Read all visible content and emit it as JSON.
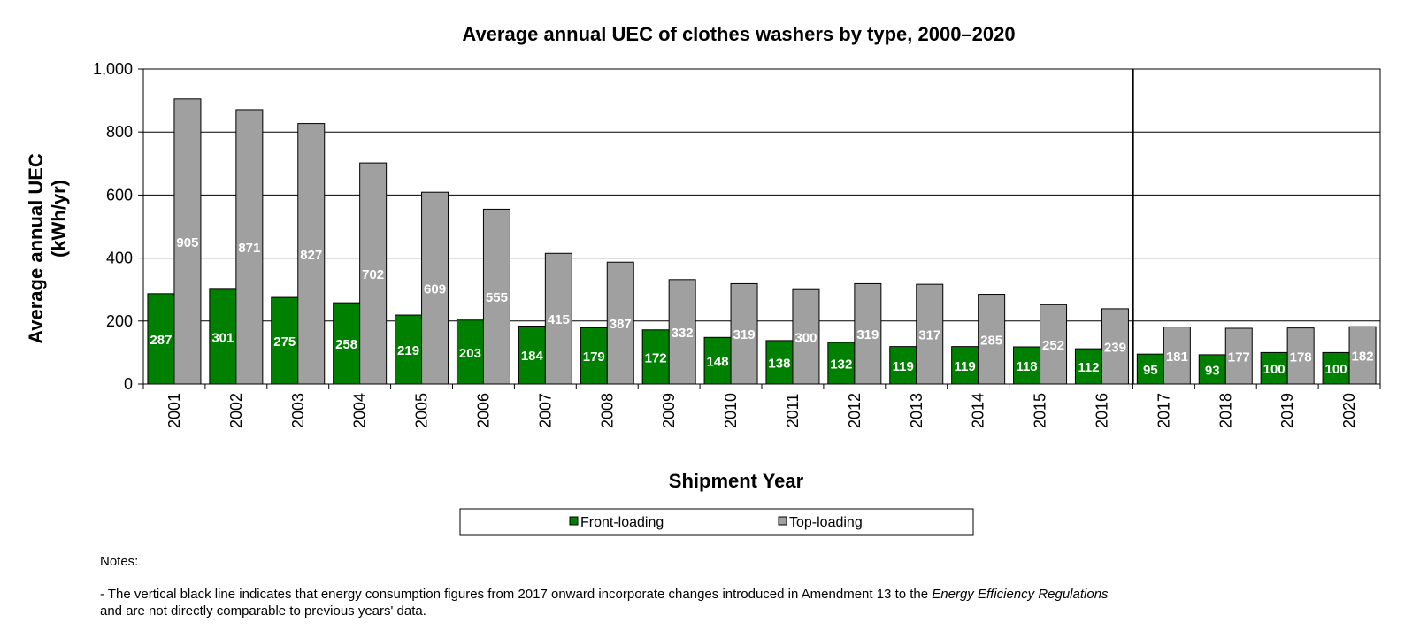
{
  "chart_data": {
    "type": "bar",
    "title": "Average annual UEC of clothes washers by type, 2000–2020",
    "xlabel": "Shipment Year",
    "ylabel": [
      "Average annual UEC",
      "(kWh/yr)"
    ],
    "ylim": [
      0,
      1000
    ],
    "yticks": [
      "0",
      "200",
      "400",
      "600",
      "800",
      "1,000"
    ],
    "ytick_values": [
      0,
      200,
      400,
      600,
      800,
      1000
    ],
    "categories": [
      "2001",
      "2002",
      "2003",
      "2004",
      "2005",
      "2006",
      "2007",
      "2008",
      "2009",
      "2010",
      "2011",
      "2012",
      "2013",
      "2014",
      "2015",
      "2016",
      "2017",
      "2018",
      "2019",
      "2020"
    ],
    "series": [
      {
        "name": "Front-loading",
        "color": "#008000",
        "values": [
          287,
          301,
          275,
          258,
          219,
          203,
          184,
          179,
          172,
          148,
          138,
          132,
          119,
          119,
          118,
          112,
          95,
          93,
          100,
          100
        ]
      },
      {
        "name": "Top-loading",
        "color": "#a0a0a0",
        "values": [
          905,
          871,
          827,
          702,
          609,
          555,
          415,
          387,
          332,
          319,
          300,
          319,
          317,
          285,
          252,
          239,
          181,
          177,
          178,
          182
        ]
      }
    ],
    "grid": true,
    "legend_position": "bottom",
    "divider_after_category": "2016",
    "data_labels": true
  },
  "notes": {
    "heading": "Notes:",
    "items": [
      {
        "before": "- The vertical black line indicates that energy consumption figures from 2017 onward incorporate changes introduced in Amendment  13 to the ",
        "italic": "Energy Efficiency Regulations",
        "after": " and are not directly comparable to previous  years' data."
      }
    ]
  }
}
